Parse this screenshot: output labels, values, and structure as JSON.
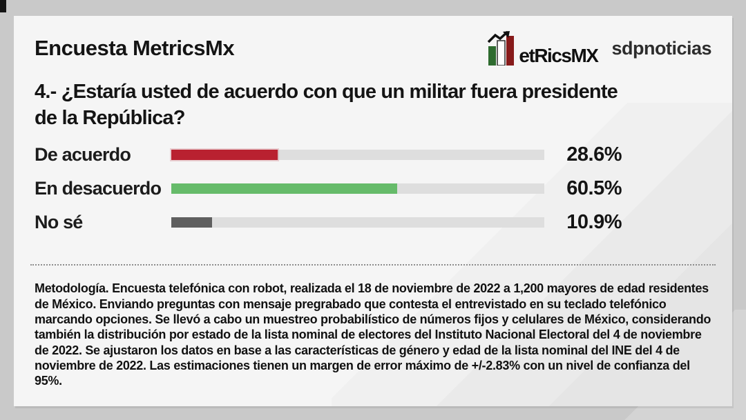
{
  "header": {
    "title": "Encuesta MetricsMx",
    "logo": {
      "brand_text": "etRicsMX",
      "partner_text": "sdpnoticias",
      "bar_colors": {
        "left": "#2e6b2f",
        "middle": "#ffffff",
        "right": "#871a1a"
      },
      "arrow_color": "#111111"
    }
  },
  "question_lines": [
    "4.- ¿Estaría usted de acuerdo con que un militar fuera presidente",
    "de la República?"
  ],
  "chart_data": {
    "type": "bar",
    "orientation": "horizontal",
    "title": "4.- ¿Estaría usted de acuerdo con que un militar fuera presidente de la República?",
    "categories": [
      "De acuerdo",
      "En desacuerdo",
      "No sé"
    ],
    "values": [
      28.6,
      60.5,
      10.9
    ],
    "value_labels": [
      "28.6%",
      "60.5%",
      "10.9%"
    ],
    "bar_colors": [
      "#b92130",
      "#66bb6a",
      "#5f5f5f"
    ],
    "track_color": "#dedede",
    "xlim": [
      0,
      100
    ],
    "grid": false,
    "legend": false,
    "value_label_position": "right"
  },
  "methodology": {
    "label": "Metodología.",
    "text": " Encuesta telefónica con robot, realizada el 18 de noviembre de 2022 a 1,200 mayores de edad residentes de México. Enviando preguntas con mensaje pregrabado que contesta el entrevistado en su teclado telefónico marcando opciones. Se llevó a cabo un muestreo probabilístico de números fijos y celulares de México, considerando también la distribución por estado de la lista nominal de electores del Instituto Nacional Electoral del 4 de noviembre de 2022. Se ajustaron los datos en base a las características de género y edad de la lista nominal del INE del 4 de noviembre de 2022. Las estimaciones tienen un margen de error máximo de +/-2.83% con un nivel de confianza del 95%."
  },
  "colors": {
    "page_background": "#c9c9c9",
    "card_background": "#f5f5f5",
    "text": "#141414",
    "divider_dots": "#8c8c8c"
  }
}
